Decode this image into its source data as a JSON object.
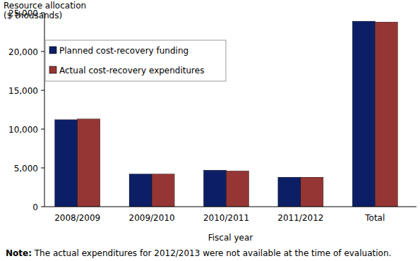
{
  "chart_data": {
    "type": "bar",
    "ylabel": [
      "Resource allocation",
      "($ thousands)"
    ],
    "xlabel": "Fiscal year",
    "note_label": "Note:",
    "note": "The actual expenditures for 2012/2013 were not available at the time of evaluation.",
    "categories": [
      "2008/2009",
      "2009/2010",
      "2010/2011",
      "2011/2012",
      "Total"
    ],
    "series": [
      {
        "name": "Planned cost-recovery funding",
        "color": "#0c1f66",
        "values": [
          11200,
          4200,
          4700,
          3800,
          23900
        ]
      },
      {
        "name": "Actual cost-recovery expenditures",
        "color": "#963634",
        "values": [
          11300,
          4200,
          4600,
          3800,
          23800
        ]
      }
    ],
    "ylim": [
      0,
      25000
    ],
    "yticks": [
      0,
      {
        "value": 5000,
        "label": "5,000"
      },
      {
        "value": 10000,
        "label": "10,000"
      },
      {
        "value": 15000,
        "label": "15,000"
      },
      {
        "value": 20000,
        "label": "20,000"
      },
      {
        "value": 25000,
        "label": "25,000"
      }
    ],
    "grid": false,
    "legend": "upper-left"
  }
}
